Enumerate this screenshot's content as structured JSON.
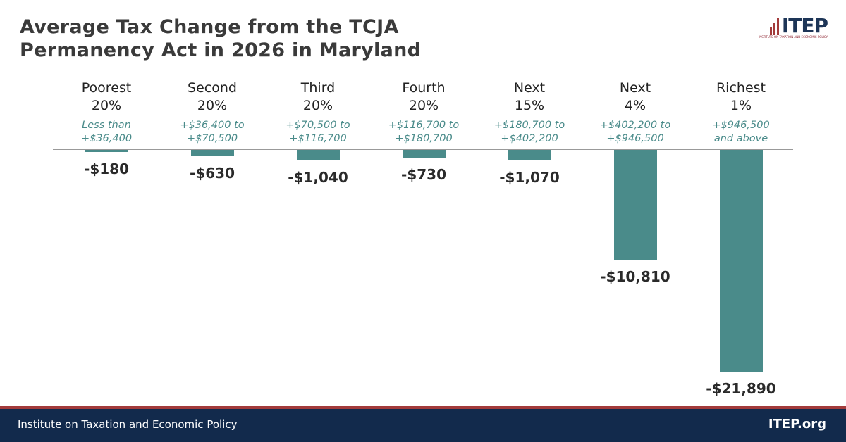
{
  "chart_data": {
    "type": "bar",
    "title": "Average Tax Change from the TCJA\nPermanency Act in 2026 in Maryland",
    "categories": [
      "Poorest\n20%",
      "Second\n20%",
      "Third\n20%",
      "Fourth\n20%",
      "Next\n15%",
      "Next\n4%",
      "Richest\n1%"
    ],
    "income_ranges": [
      "Less than\n+$36,400",
      "+$36,400 to\n+$70,500",
      "+$70,500 to\n+$116,700",
      "+$116,700 to\n+$180,700",
      "+$180,700 to\n+$402,200",
      "+$402,200 to\n+$946,500",
      "+$946,500\nand above"
    ],
    "values": [
      -180,
      -630,
      -1040,
      -730,
      -1070,
      -10810,
      -21890
    ],
    "value_labels": [
      "-$180",
      "-$630",
      "-$1,040",
      "-$730",
      "-$1,070",
      "-$10,810",
      "-$21,890"
    ],
    "color": "#4a8b8a",
    "ylim": [
      -21890,
      0
    ]
  },
  "logo": "ITEP",
  "logo_subtitle": "INSTITUTE ON TAXATION AND ECONOMIC POLICY",
  "footer": {
    "left": "Institute on Taxation and Economic Policy",
    "right": "ITEP.org"
  }
}
